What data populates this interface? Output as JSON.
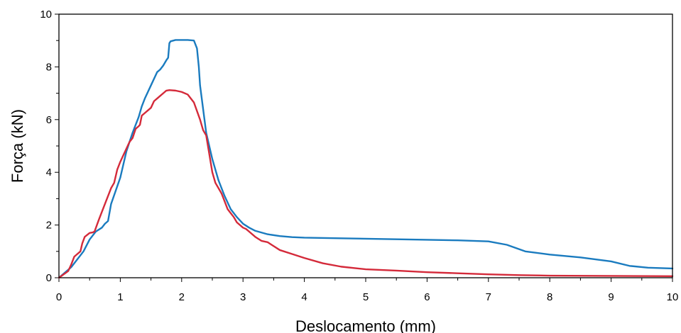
{
  "chart_data": {
    "type": "line",
    "title": "",
    "xlabel": "Deslocamento (mm)",
    "ylabel": "Força (kN)",
    "xlim": [
      0,
      10
    ],
    "ylim": [
      0,
      10
    ],
    "x_ticks": [
      0,
      1,
      2,
      3,
      4,
      5,
      6,
      7,
      8,
      9,
      10
    ],
    "y_ticks": [
      0,
      2,
      4,
      6,
      8,
      10
    ],
    "x_minor_step": 0.5,
    "y_minor_step": 1,
    "grid": false,
    "legend": "none",
    "series": [
      {
        "color": "#1a7bbf",
        "x": [
          0,
          0.2,
          0.4,
          0.5,
          0.6,
          0.7,
          0.75,
          0.8,
          0.85,
          1.0,
          1.1,
          1.2,
          1.3,
          1.35,
          1.4,
          1.5,
          1.6,
          1.65,
          1.7,
          1.75,
          1.78,
          1.8,
          1.82,
          1.9,
          2.0,
          2.1,
          2.2,
          2.25,
          2.28,
          2.3,
          2.35,
          2.4,
          2.5,
          2.6,
          2.7,
          2.8,
          2.9,
          3.0,
          3.1,
          3.2,
          3.4,
          3.6,
          3.8,
          4.0,
          4.5,
          5.0,
          5.5,
          6.0,
          6.5,
          7.0,
          7.3,
          7.6,
          8.0,
          8.5,
          9.0,
          9.3,
          9.6,
          10.0
        ],
        "y": [
          0,
          0.4,
          1.0,
          1.45,
          1.75,
          1.9,
          2.05,
          2.15,
          2.8,
          3.8,
          4.8,
          5.5,
          6.1,
          6.5,
          6.8,
          7.3,
          7.8,
          7.9,
          8.05,
          8.25,
          8.35,
          8.9,
          8.97,
          9.02,
          9.02,
          9.02,
          9.0,
          8.7,
          8.0,
          7.3,
          6.4,
          5.5,
          4.5,
          3.7,
          3.1,
          2.6,
          2.3,
          2.05,
          1.9,
          1.78,
          1.65,
          1.58,
          1.54,
          1.52,
          1.5,
          1.48,
          1.46,
          1.44,
          1.42,
          1.38,
          1.25,
          1.0,
          0.88,
          0.77,
          0.62,
          0.45,
          0.38,
          0.35
        ]
      },
      {
        "color": "#d42a3a",
        "x": [
          0,
          0.15,
          0.2,
          0.25,
          0.3,
          0.35,
          0.38,
          0.42,
          0.5,
          0.55,
          0.58,
          0.65,
          0.75,
          0.85,
          0.9,
          0.95,
          1.0,
          1.05,
          1.1,
          1.15,
          1.2,
          1.25,
          1.3,
          1.32,
          1.35,
          1.4,
          1.45,
          1.5,
          1.55,
          1.6,
          1.65,
          1.7,
          1.75,
          1.8,
          1.9,
          2.0,
          2.1,
          2.2,
          2.3,
          2.35,
          2.4,
          2.45,
          2.5,
          2.55,
          2.6,
          2.65,
          2.7,
          2.75,
          2.8,
          2.85,
          2.9,
          3.0,
          3.05,
          3.1,
          3.2,
          3.3,
          3.4,
          3.5,
          3.6,
          3.8,
          4.0,
          4.3,
          4.6,
          5.0,
          5.5,
          6.0,
          6.5,
          7.0,
          7.5,
          8.0,
          9.0,
          10.0
        ],
        "y": [
          0,
          0.25,
          0.5,
          0.8,
          0.9,
          1.0,
          1.3,
          1.55,
          1.7,
          1.72,
          1.75,
          2.2,
          2.8,
          3.4,
          3.6,
          4.1,
          4.4,
          4.65,
          4.9,
          5.15,
          5.3,
          5.65,
          5.75,
          5.8,
          6.15,
          6.25,
          6.35,
          6.45,
          6.7,
          6.8,
          6.9,
          7.0,
          7.1,
          7.12,
          7.1,
          7.05,
          6.95,
          6.65,
          6.0,
          5.6,
          5.4,
          4.7,
          4.0,
          3.6,
          3.4,
          3.2,
          2.9,
          2.6,
          2.45,
          2.3,
          2.1,
          1.9,
          1.85,
          1.75,
          1.55,
          1.4,
          1.35,
          1.2,
          1.05,
          0.9,
          0.75,
          0.55,
          0.42,
          0.32,
          0.27,
          0.21,
          0.17,
          0.13,
          0.1,
          0.08,
          0.07,
          0.06
        ]
      }
    ]
  }
}
